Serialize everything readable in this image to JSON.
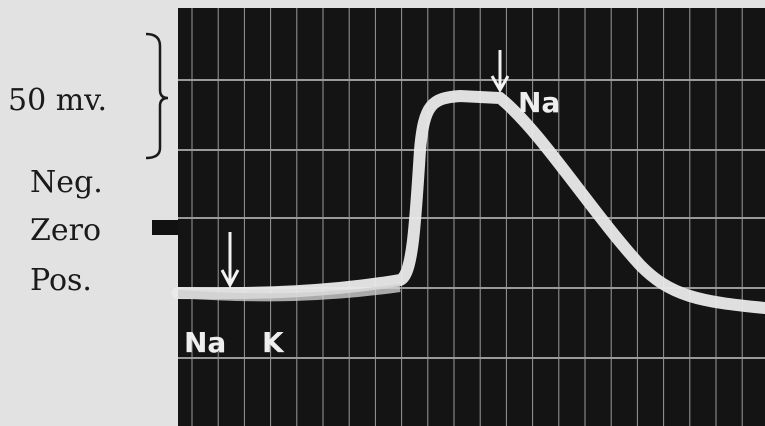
{
  "labels": {
    "scale": "50 mv.",
    "neg": "Neg.",
    "zero": "Zero",
    "pos": "Pos.",
    "na_top": "Na",
    "na_bottom": "Na",
    "k_bottom": "K"
  }
}
